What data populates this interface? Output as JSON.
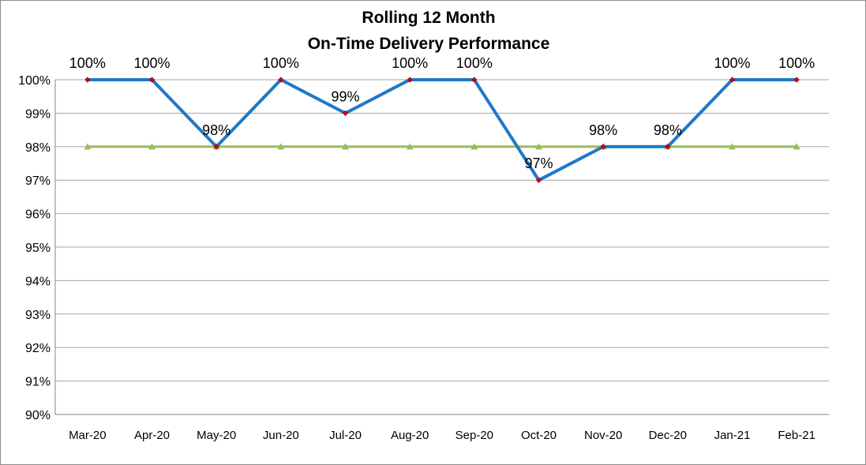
{
  "chart_data": {
    "type": "line",
    "title": [
      "Rolling 12 Month",
      "On-Time Delivery Performance"
    ],
    "categories": [
      "Mar-20",
      "Apr-20",
      "May-20",
      "Jun-20",
      "Jul-20",
      "Aug-20",
      "Sep-20",
      "Oct-20",
      "Nov-20",
      "Dec-20",
      "Jan-21",
      "Feb-21"
    ],
    "ylim": [
      90,
      100
    ],
    "yticks": [
      "90%",
      "91%",
      "92%",
      "93%",
      "94%",
      "95%",
      "96%",
      "97%",
      "98%",
      "99%",
      "100%"
    ],
    "grid": true,
    "legend": "none",
    "series": [
      {
        "values": [
          100,
          100,
          98,
          100,
          99,
          100,
          100,
          97,
          98,
          98,
          100,
          100
        ],
        "data_labels": [
          "100%",
          "100%",
          "98%",
          "100%",
          "99%",
          "100%",
          "100%",
          "97%",
          "98%",
          "98%",
          "100%",
          "100%"
        ],
        "color": "#1f78c8",
        "marker": "diamond",
        "marker_color": "#d9000d"
      },
      {
        "values": [
          98,
          98,
          98,
          98,
          98,
          98,
          98,
          98,
          98,
          98,
          98,
          98
        ],
        "color": "#9bbb59",
        "marker": "triangle"
      }
    ]
  }
}
